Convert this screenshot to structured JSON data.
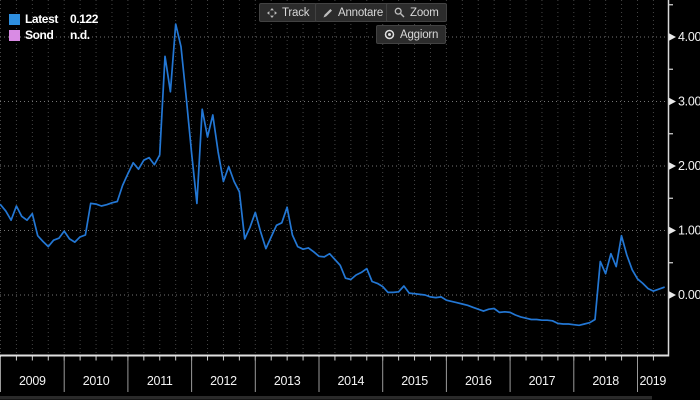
{
  "window": {
    "background": "#000000"
  },
  "legend": {
    "rows": [
      {
        "swatch_color": "#2e8fe0",
        "label": "Latest",
        "value": "0.122"
      },
      {
        "swatch_color": "#d98be4",
        "label": "Sond",
        "value": "n.d."
      }
    ]
  },
  "toolbar": {
    "buttons": [
      {
        "id": "track",
        "label": "Track",
        "icon": "move-icon"
      },
      {
        "id": "annotare",
        "label": "Annotare",
        "icon": "pencil-icon"
      },
      {
        "id": "zoom",
        "label": "Zoom",
        "icon": "magnifier-icon"
      }
    ],
    "refresh_button": {
      "label": "Aggiorn",
      "icon": "target-icon"
    }
  },
  "chart_data": {
    "type": "line",
    "title": "",
    "frequency": "monthly",
    "x_start": "2009-01",
    "x_end": "2019-06",
    "x_year_labels": [
      "2009",
      "2010",
      "2011",
      "2012",
      "2013",
      "2014",
      "2015",
      "2016",
      "2017",
      "2018",
      "2019"
    ],
    "y_ticks": [
      0,
      1,
      2,
      3,
      4
    ],
    "y_tick_labels": [
      "0.00",
      "1.00",
      "2.00",
      "3.00",
      "4.00"
    ],
    "y_minor_tick_step": 0.5,
    "ylim": [
      -0.95,
      4.5
    ],
    "grid": "dotted",
    "legend_position": "top-left",
    "axis_color": "#e0e0e0",
    "grid_color_h": "#757575",
    "grid_color_v": "#454545",
    "series": [
      {
        "name": "Latest",
        "color": "#2377d4",
        "latest_value": 0.122,
        "values": [
          1.4,
          1.3,
          1.16,
          1.38,
          1.22,
          1.16,
          1.26,
          0.92,
          0.83,
          0.75,
          0.85,
          0.88,
          0.99,
          0.87,
          0.82,
          0.9,
          0.93,
          1.42,
          1.41,
          1.38,
          1.4,
          1.43,
          1.45,
          1.7,
          1.88,
          2.05,
          1.95,
          2.09,
          2.13,
          2.02,
          2.17,
          3.7,
          3.15,
          4.2,
          3.85,
          3.05,
          2.2,
          1.42,
          2.88,
          2.45,
          2.79,
          2.22,
          1.76,
          1.99,
          1.76,
          1.6,
          0.87,
          1.05,
          1.28,
          0.98,
          0.72,
          0.9,
          1.08,
          1.12,
          1.36,
          0.93,
          0.75,
          0.71,
          0.73,
          0.67,
          0.6,
          0.59,
          0.64,
          0.55,
          0.46,
          0.26,
          0.24,
          0.31,
          0.35,
          0.41,
          0.21,
          0.18,
          0.13,
          0.04,
          0.04,
          0.05,
          0.14,
          0.03,
          0.02,
          0.01,
          0.0,
          -0.03,
          -0.04,
          -0.03,
          -0.08,
          -0.1,
          -0.12,
          -0.14,
          -0.16,
          -0.19,
          -0.22,
          -0.25,
          -0.22,
          -0.21,
          -0.27,
          -0.26,
          -0.27,
          -0.31,
          -0.34,
          -0.36,
          -0.38,
          -0.38,
          -0.39,
          -0.39,
          -0.4,
          -0.44,
          -0.45,
          -0.45,
          -0.46,
          -0.47,
          -0.45,
          -0.43,
          -0.38,
          0.52,
          0.33,
          0.64,
          0.44,
          0.92,
          0.62,
          0.39,
          0.25,
          0.18,
          0.1,
          0.06,
          0.09,
          0.12
        ]
      },
      {
        "name": "Sond",
        "color": "#d98be4",
        "values": [],
        "note": "n.d."
      }
    ]
  }
}
